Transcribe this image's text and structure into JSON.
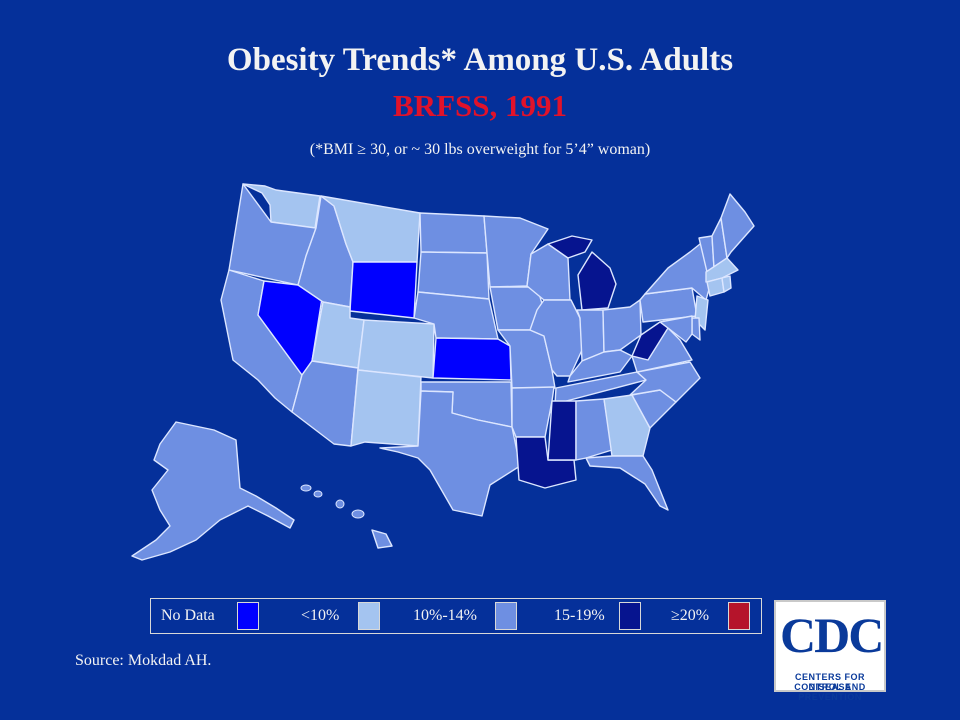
{
  "title": "Obesity Trends* Among U.S. Adults",
  "subtitle": "BRFSS, 1991",
  "note": "(*BMI ≥ 30, or ~ 30 lbs overweight for 5’4” woman)",
  "source": "Source: Mokdad AH.",
  "colors": {
    "background": "#05309a",
    "no_data": "#0000ff",
    "lt10": "#a4c4f0",
    "p10_14": "#6e8fe2",
    "p15_19": "#06148f",
    "ge20": "#b5142b",
    "border": "#dce6ff"
  },
  "legend": [
    {
      "label": "No Data",
      "category": "no_data"
    },
    {
      "label": "<10%",
      "category": "lt10"
    },
    {
      "label": "10%-14%",
      "category": "p10_14"
    },
    {
      "label": "15-19%",
      "category": "p15_19"
    },
    {
      "label": "≥20%",
      "category": "ge20"
    }
  ],
  "states": {
    "WA": "lt10",
    "OR": "p10_14",
    "CA": "p10_14",
    "NV": "no_data",
    "ID": "p10_14",
    "MT": "lt10",
    "WY": "no_data",
    "UT": "lt10",
    "CO": "lt10",
    "AZ": "p10_14",
    "NM": "lt10",
    "ND": "p10_14",
    "SD": "p10_14",
    "NE": "p10_14",
    "KS": "no_data",
    "OK": "p10_14",
    "TX": "p10_14",
    "MN": "p10_14",
    "IA": "p10_14",
    "MO": "p10_14",
    "AR": "p10_14",
    "LA": "p15_19",
    "WI": "p10_14",
    "IL": "p10_14",
    "MI": "p15_19",
    "IN": "p10_14",
    "OH": "p10_14",
    "KY": "p10_14",
    "TN": "p10_14",
    "MS": "p15_19",
    "AL": "p10_14",
    "GA": "lt10",
    "FL": "p10_14",
    "SC": "p10_14",
    "NC": "p10_14",
    "VA": "p10_14",
    "WV": "p15_19",
    "PA": "p10_14",
    "NY": "p10_14",
    "VT": "p10_14",
    "NH": "p10_14",
    "ME": "p10_14",
    "MA": "lt10",
    "CT": "lt10",
    "RI": "lt10",
    "NJ": "lt10",
    "DE": "p10_14",
    "MD": "p10_14",
    "AK": "p10_14",
    "HI": "p10_14"
  },
  "logo": {
    "text": "CDC",
    "line1": "CENTERS FOR DISEASE",
    "line2": "CONTROL AND PREVENTION"
  }
}
